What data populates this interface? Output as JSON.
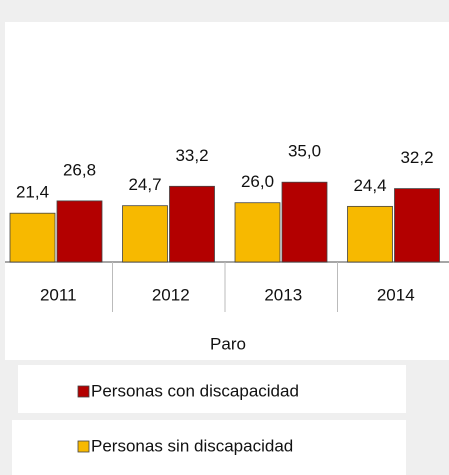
{
  "chart_data": {
    "type": "bar",
    "xlabel": "Paro",
    "categories": [
      "2011",
      "2012",
      "2013",
      "2014"
    ],
    "series": [
      {
        "name": "Personas sin discapacidad",
        "color": "#f7b900",
        "values": [
          21.4,
          24.7,
          26.0,
          24.4
        ],
        "value_labels": [
          "21,4",
          "24,7",
          "26,0",
          "24,4"
        ]
      },
      {
        "name": "Personas con discapacidad",
        "color": "#b30000",
        "values": [
          26.8,
          33.2,
          35.0,
          32.2
        ],
        "value_labels": [
          "26,8",
          "33,2",
          "35,0",
          "32,2"
        ]
      }
    ],
    "legend": "bottom"
  }
}
